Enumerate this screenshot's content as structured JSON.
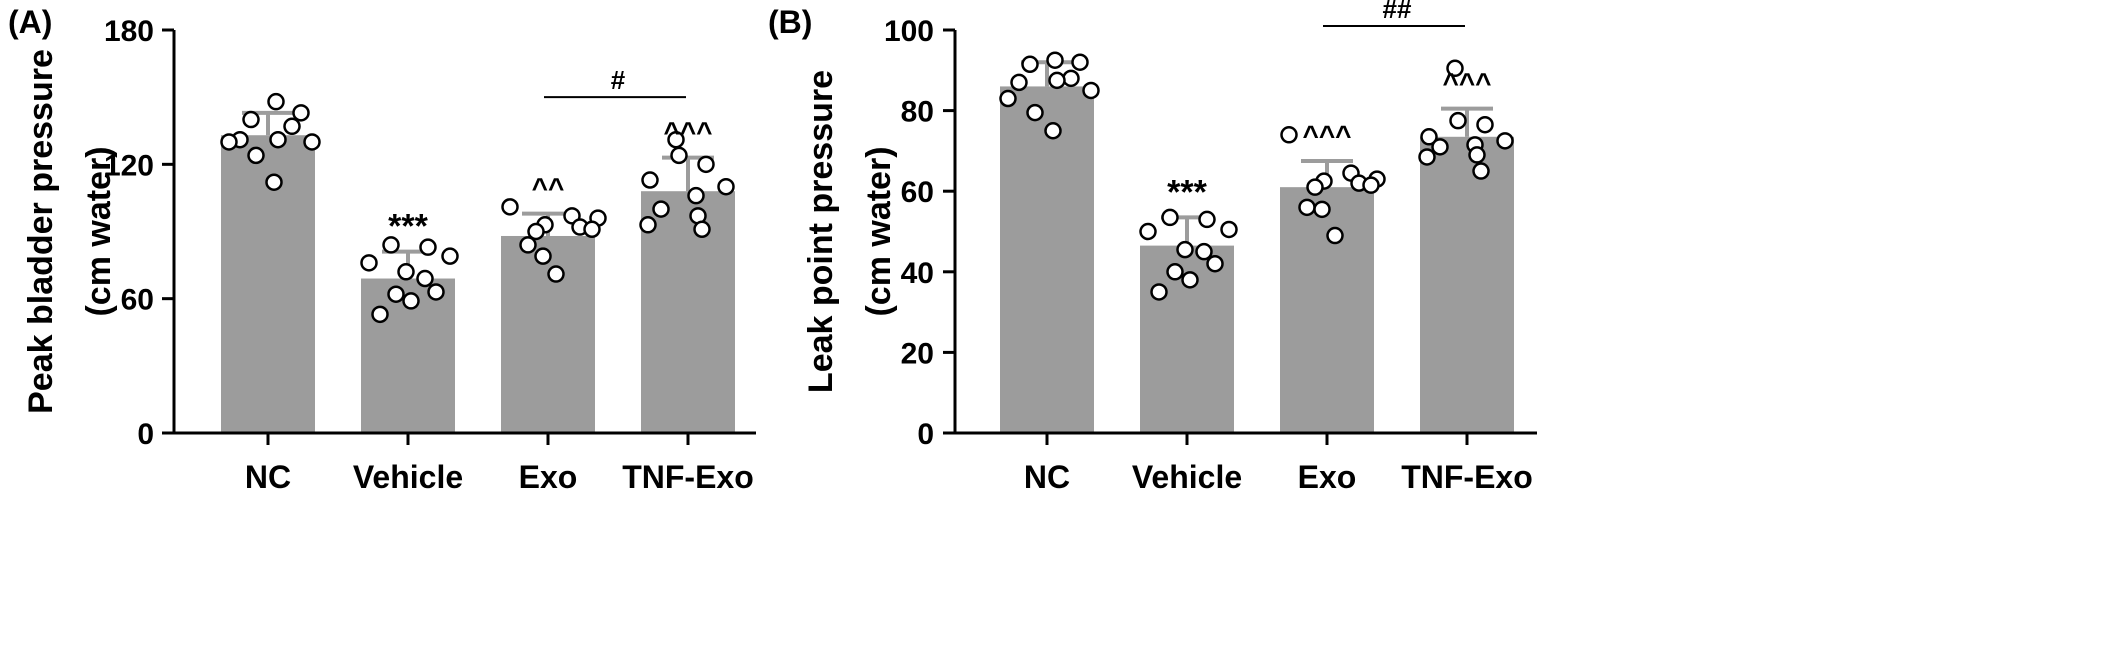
{
  "chart_data": [
    {
      "panel": "(A)",
      "type": "bar",
      "ylabel_line1": "Peak bladder pressure",
      "ylabel_line2": "(cm water)",
      "ylim": [
        0,
        180
      ],
      "yticks": [
        0,
        60,
        120,
        180
      ],
      "categories": [
        "NC",
        "Vehicle",
        "Exo",
        "TNF-Exo"
      ],
      "values": [
        133,
        69,
        88,
        108
      ],
      "error_upper": [
        143,
        81,
        98,
        123
      ],
      "points": [
        [
          148,
          143,
          140,
          137,
          131,
          131,
          130,
          130,
          124,
          112
        ],
        [
          84,
          83,
          79,
          76,
          72,
          69,
          63,
          62,
          59,
          53
        ],
        [
          101,
          97,
          96,
          93,
          92,
          91,
          90,
          84,
          79,
          71
        ],
        [
          131,
          124,
          120,
          113,
          110,
          106,
          100,
          97,
          93,
          91
        ]
      ],
      "markers": [
        "",
        "***",
        "^^",
        "^^^"
      ],
      "bracket": {
        "from": 2,
        "to": 3,
        "label": "#",
        "y": 150
      },
      "bar_color": "#9c9c9c",
      "error_color": "#9c9c9c",
      "grid": false
    },
    {
      "panel": "(B)",
      "type": "bar",
      "ylabel_line1": "Leak point pressure",
      "ylabel_line2": "(cm water)",
      "ylim": [
        0,
        100
      ],
      "yticks": [
        0,
        20,
        40,
        60,
        80,
        100
      ],
      "categories": [
        "NC",
        "Vehicle",
        "Exo",
        "TNF-Exo"
      ],
      "values": [
        86,
        46.5,
        61,
        73.5
      ],
      "error_upper": [
        92,
        53.5,
        67.5,
        80.5
      ],
      "points": [
        [
          92.5,
          92,
          91.5,
          88,
          87.5,
          87,
          85,
          83,
          79.5,
          75
        ],
        [
          53.5,
          53,
          50.5,
          50,
          45.5,
          45,
          42,
          40,
          38,
          35
        ],
        [
          74,
          64.5,
          63,
          62.5,
          62,
          61.5,
          61,
          56,
          55.5,
          49
        ],
        [
          90.5,
          77.5,
          76.5,
          73.5,
          72.5,
          71.5,
          71,
          69,
          68.5,
          65
        ]
      ],
      "markers": [
        "",
        "***",
        "^^^",
        "^^^"
      ],
      "bracket": {
        "from": 2,
        "to": 3,
        "label": "##",
        "y": 101
      },
      "bar_color": "#9c9c9c",
      "error_color": "#9c9c9c",
      "grid": false
    }
  ]
}
